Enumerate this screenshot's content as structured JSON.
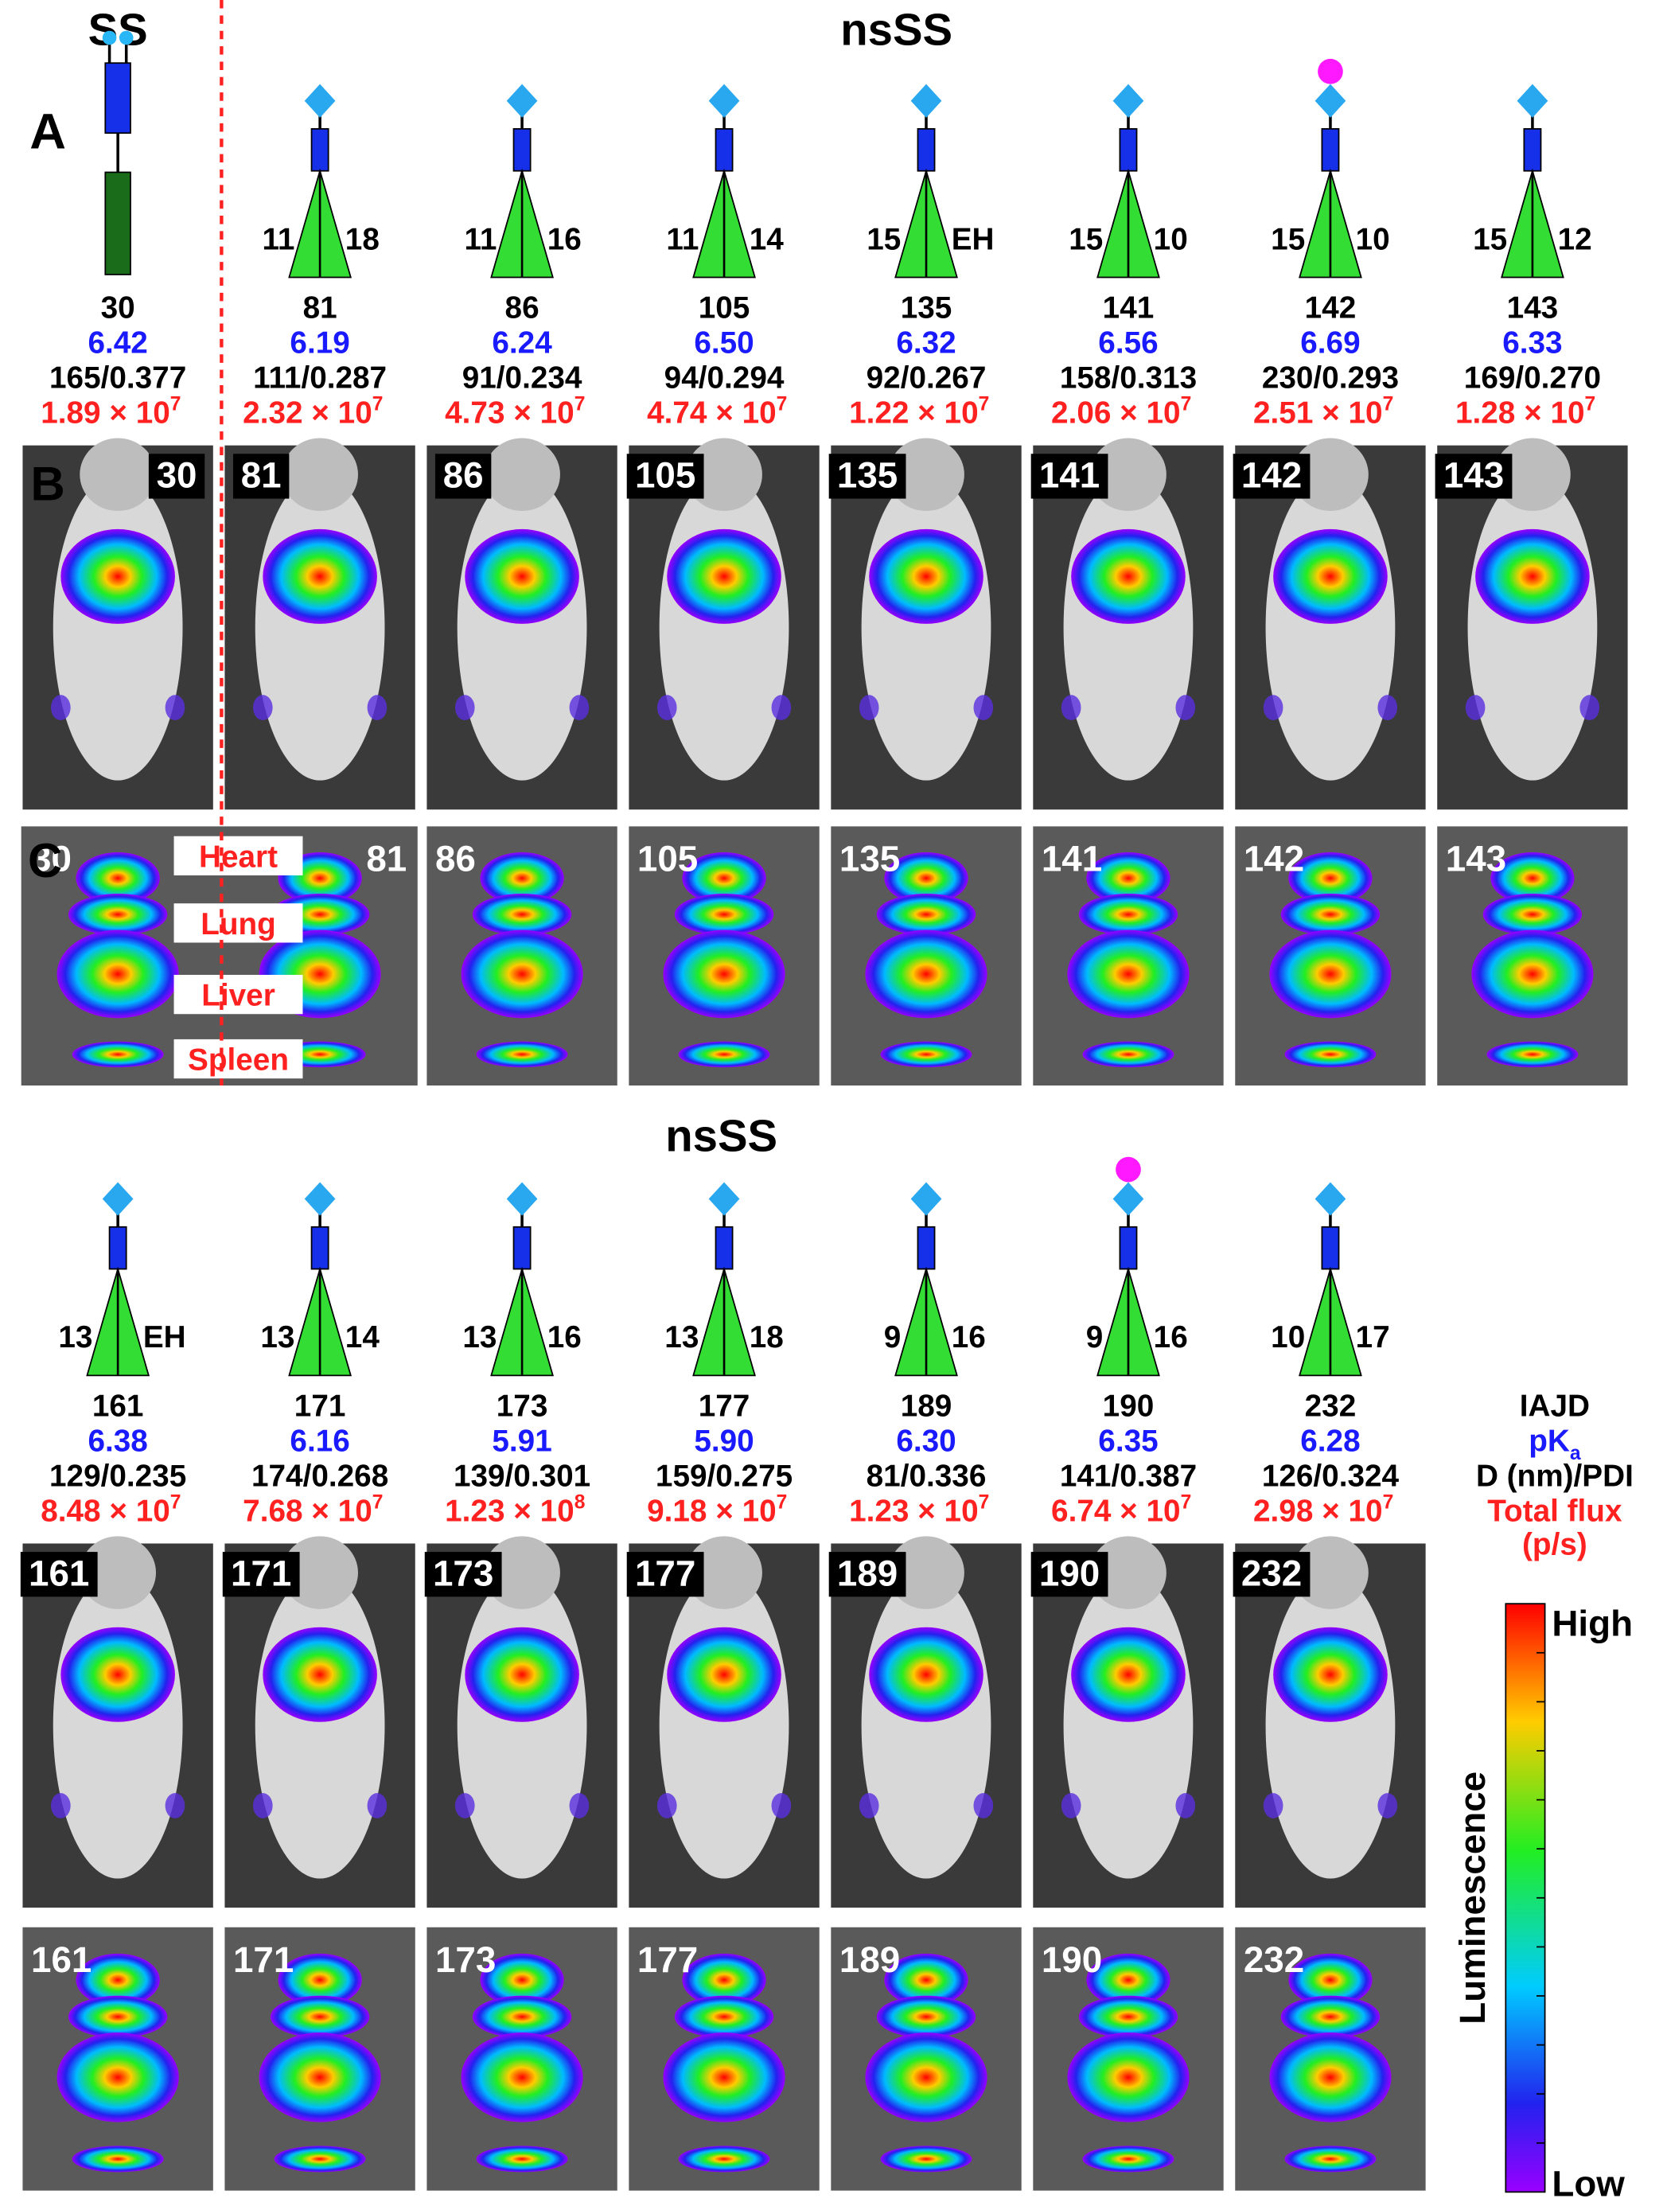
{
  "header": {
    "ss": "SS",
    "nsss_top": "nsSS",
    "nsss_bottom": "nsSS"
  },
  "panel_labels": [
    "A",
    "B",
    "C"
  ],
  "organs": [
    "Heart",
    "Lung",
    "Liver",
    "Spleen"
  ],
  "top_row": [
    {
      "iajd": "30",
      "pka": "6.42",
      "size": "165/0.377",
      "flux": "1.89 × 10",
      "flux_exp": "7",
      "structure": "ss"
    },
    {
      "iajd": "81",
      "tail_left": "11",
      "tail_right": "18",
      "pka": "6.19",
      "size": "111/0.287",
      "flux": "2.32 × 10",
      "flux_exp": "7"
    },
    {
      "iajd": "86",
      "tail_left": "11",
      "tail_right": "16",
      "pka": "6.24",
      "size": "91/0.234",
      "flux": "4.73 × 10",
      "flux_exp": "7"
    },
    {
      "iajd": "105",
      "tail_left": "11",
      "tail_right": "14",
      "pka": "6.50",
      "size": "94/0.294",
      "flux": "4.74 × 10",
      "flux_exp": "7"
    },
    {
      "iajd": "135",
      "tail_left": "15",
      "tail_right": "EH",
      "pka": "6.32",
      "size": "92/0.267",
      "flux": "1.22 × 10",
      "flux_exp": "7"
    },
    {
      "iajd": "141",
      "tail_left": "15",
      "tail_right": "10",
      "pka": "6.56",
      "size": "158/0.313",
      "flux": "2.06 × 10",
      "flux_exp": "7"
    },
    {
      "iajd": "142",
      "tail_left": "15",
      "tail_right": "10",
      "pka": "6.69",
      "size": "230/0.293",
      "flux": "2.51 × 10",
      "flux_exp": "7",
      "pink_cap": true
    },
    {
      "iajd": "143",
      "tail_left": "15",
      "tail_right": "12",
      "pka": "6.33",
      "size": "169/0.270",
      "flux": "1.28 × 10",
      "flux_exp": "7"
    }
  ],
  "bottom_row": [
    {
      "iajd": "161",
      "tail_left": "13",
      "tail_right": "EH",
      "pka": "6.38",
      "size": "129/0.235",
      "flux": "8.48 × 10",
      "flux_exp": "7"
    },
    {
      "iajd": "171",
      "tail_left": "13",
      "tail_right": "14",
      "pka": "6.16",
      "size": "174/0.268",
      "flux": "7.68 × 10",
      "flux_exp": "7"
    },
    {
      "iajd": "173",
      "tail_left": "13",
      "tail_right": "16",
      "pka": "5.91",
      "size": "139/0.301",
      "flux": "1.23 × 10",
      "flux_exp": "8"
    },
    {
      "iajd": "177",
      "tail_left": "13",
      "tail_right": "18",
      "pka": "5.90",
      "size": "159/0.275",
      "flux": "9.18 × 10",
      "flux_exp": "7"
    },
    {
      "iajd": "189",
      "tail_left": "9",
      "tail_right": "16",
      "pka": "6.30",
      "size": "81/0.336",
      "flux": "1.23 × 10",
      "flux_exp": "7"
    },
    {
      "iajd": "190",
      "tail_left": "9",
      "tail_right": "16",
      "pka": "6.35",
      "size": "141/0.387",
      "flux": "6.74 × 10",
      "flux_exp": "7",
      "pink_cap": true
    },
    {
      "iajd": "232",
      "tail_left": "10",
      "tail_right": "17",
      "pka": "6.28",
      "size": "126/0.324",
      "flux": "2.98 × 10",
      "flux_exp": "7"
    }
  ],
  "legend": {
    "iajd": "IAJD",
    "pka": "pK",
    "pka_sub": "a",
    "size": "D (nm)/PDI",
    "flux": "Total flux",
    "flux_unit": "(p/s)",
    "colorbar_title": "Luminescence",
    "high": "High",
    "low": "Low"
  }
}
